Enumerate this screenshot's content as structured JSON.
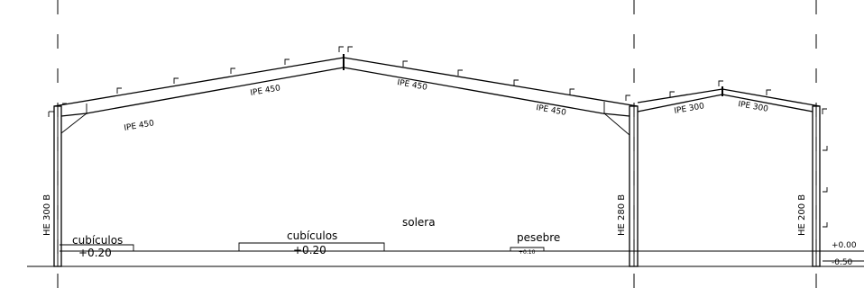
{
  "profiles": {
    "left_column": "HE 300 B",
    "middle_column": "HE 280 B",
    "right_column": "HE 200 B",
    "left_rafter_1": "IPE 450",
    "left_rafter_2": "IPE 450",
    "right_rafter_1": "IPE 450",
    "right_rafter_2": "IPE 450",
    "small_rafter_1": "IPE 300",
    "small_rafter_2": "IPE 300"
  },
  "labels": {
    "cubiculos_1": "cubículos",
    "cubiculos_1_level": "+0.20",
    "cubiculos_2": "cubículos",
    "cubiculos_2_level": "+0.20",
    "solera": "solera",
    "pesebre": "pesebre",
    "pesebre_level": "+0.10"
  },
  "levels": {
    "floor": "+0.00",
    "ground": "-0.50"
  }
}
